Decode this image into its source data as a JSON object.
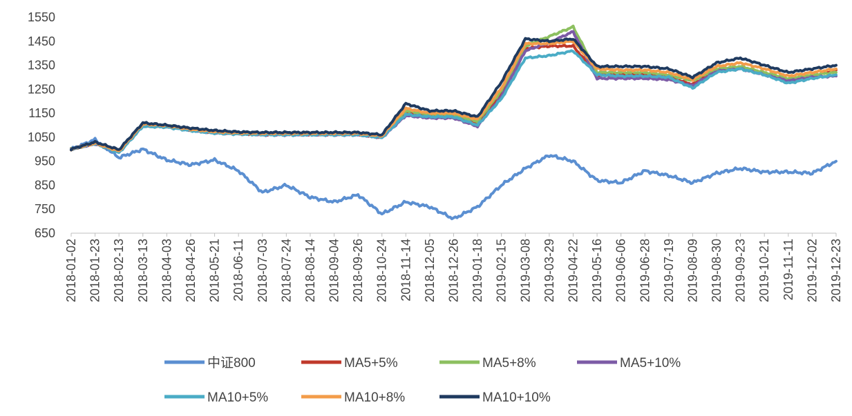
{
  "chart_data": {
    "type": "line",
    "title": "",
    "xlabel": "",
    "ylabel": "",
    "ylim": [
      650,
      1550
    ],
    "yticks": [
      650,
      750,
      850,
      950,
      1050,
      1150,
      1250,
      1350,
      1450,
      1550
    ],
    "grid": "none",
    "legend_position": "bottom",
    "x": [
      "2018-01-02",
      "2018-01-23",
      "2018-02-13",
      "2018-03-13",
      "2018-04-03",
      "2018-04-26",
      "2018-05-21",
      "2018-06-11",
      "2018-07-03",
      "2018-07-24",
      "2018-08-14",
      "2018-09-04",
      "2018-09-26",
      "2018-10-24",
      "2018-11-14",
      "2018-12-05",
      "2018-12-26",
      "2019-01-18",
      "2019-02-15",
      "2019-03-08",
      "2019-03-29",
      "2019-04-22",
      "2019-05-16",
      "2019-06-06",
      "2019-06-28",
      "2019-07-19",
      "2019-08-09",
      "2019-08-30",
      "2019-09-23",
      "2019-10-21",
      "2019-11-11",
      "2019-12-02",
      "2019-12-23"
    ],
    "series": [
      {
        "name": "中证800",
        "color": "#5b8fd1",
        "values": [
          1000,
          1040,
          965,
          1000,
          955,
          935,
          955,
          910,
          820,
          850,
          800,
          780,
          810,
          730,
          780,
          760,
          710,
          760,
          850,
          920,
          975,
          950,
          870,
          860,
          910,
          890,
          860,
          900,
          920,
          905,
          905,
          900,
          950
        ]
      },
      {
        "name": "MA5+5%",
        "color": "#c0392b",
        "values": [
          1000,
          1025,
          990,
          1100,
          1095,
          1080,
          1070,
          1065,
          1062,
          1062,
          1062,
          1062,
          1062,
          1050,
          1150,
          1140,
          1140,
          1110,
          1230,
          1420,
          1430,
          1430,
          1310,
          1310,
          1310,
          1300,
          1270,
          1330,
          1340,
          1315,
          1290,
          1305,
          1330
        ]
      },
      {
        "name": "MA5+8%",
        "color": "#8dc060",
        "values": [
          1000,
          1025,
          992,
          1102,
          1098,
          1082,
          1072,
          1067,
          1064,
          1064,
          1064,
          1064,
          1064,
          1052,
          1160,
          1145,
          1145,
          1115,
          1245,
          1430,
          1470,
          1510,
          1320,
          1320,
          1320,
          1310,
          1285,
          1335,
          1345,
          1320,
          1295,
          1310,
          1320
        ]
      },
      {
        "name": "MA5+10%",
        "color": "#7c5ba6",
        "values": [
          1000,
          1022,
          988,
          1098,
          1095,
          1078,
          1068,
          1065,
          1060,
          1060,
          1060,
          1060,
          1060,
          1048,
          1140,
          1130,
          1130,
          1095,
          1220,
          1410,
          1445,
          1490,
          1295,
          1295,
          1295,
          1290,
          1265,
          1325,
          1335,
          1310,
          1285,
          1300,
          1305
        ]
      },
      {
        "name": "MA10+5%",
        "color": "#4bacc6",
        "values": [
          1000,
          1023,
          985,
          1095,
          1092,
          1077,
          1067,
          1063,
          1060,
          1060,
          1060,
          1060,
          1060,
          1048,
          1145,
          1135,
          1135,
          1100,
          1210,
          1380,
          1390,
          1410,
          1310,
          1305,
          1305,
          1300,
          1255,
          1320,
          1335,
          1310,
          1275,
          1295,
          1310
        ]
      },
      {
        "name": "MA10+8%",
        "color": "#f39c4a",
        "values": [
          1000,
          1025,
          992,
          1105,
          1098,
          1083,
          1073,
          1068,
          1066,
          1066,
          1066,
          1066,
          1066,
          1055,
          1170,
          1150,
          1150,
          1125,
          1255,
          1440,
          1440,
          1450,
          1335,
          1330,
          1330,
          1320,
          1290,
          1345,
          1360,
          1335,
          1305,
          1320,
          1335
        ]
      },
      {
        "name": "MA10+10%",
        "color": "#1f3a5f",
        "values": [
          1000,
          1030,
          998,
          1110,
          1100,
          1088,
          1078,
          1072,
          1070,
          1070,
          1070,
          1070,
          1070,
          1060,
          1190,
          1160,
          1160,
          1135,
          1280,
          1460,
          1450,
          1460,
          1345,
          1345,
          1345,
          1335,
          1300,
          1360,
          1380,
          1350,
          1320,
          1335,
          1350
        ]
      }
    ]
  }
}
